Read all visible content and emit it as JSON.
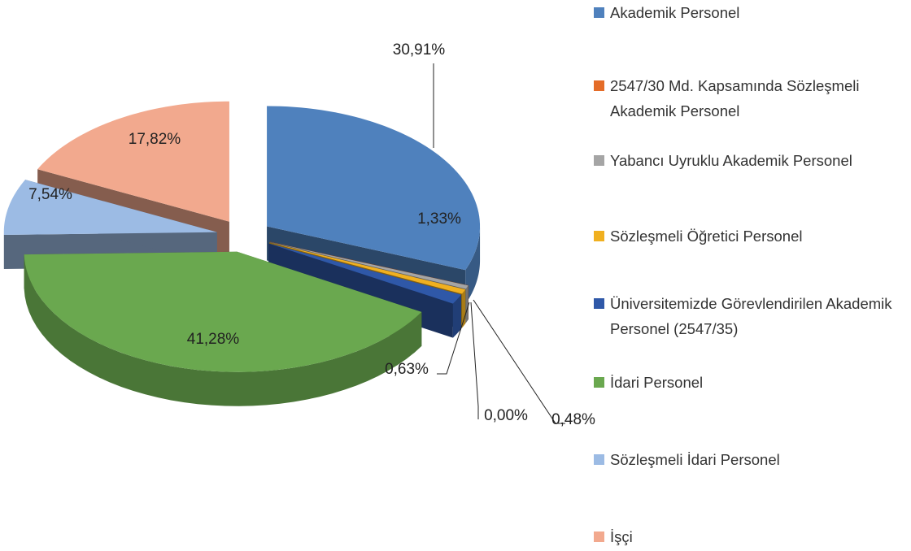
{
  "chart_data": {
    "type": "pie",
    "categories": [
      "Akademik Personel",
      "2547/30 Md. Kapsamında Sözleşmeli Akademik Personel",
      "Yabancı Uyruklu Akademik Personel",
      "Sözleşmeli Öğretici Personel",
      "Üniversitemizde Görevlendirilen Akademik Personel (2547/35)",
      "İdari Personel",
      "Sözleşmeli İdari Personel",
      "İşçi"
    ],
    "values": [
      30.91,
      0.0,
      0.48,
      0.63,
      1.33,
      41.28,
      7.54,
      17.82
    ],
    "value_labels": [
      "30,91%",
      "0,00%",
      "0,48%",
      "0,63%",
      "1,33%",
      "41,28%",
      "7,54%",
      "17,82%"
    ],
    "colors": [
      "#4f81bd",
      "#e46c28",
      "#a5a5a5",
      "#f0b020",
      "#2f58a8",
      "#6aa84f",
      "#9cbbe4",
      "#f2a98e"
    ],
    "legend": "right"
  }
}
